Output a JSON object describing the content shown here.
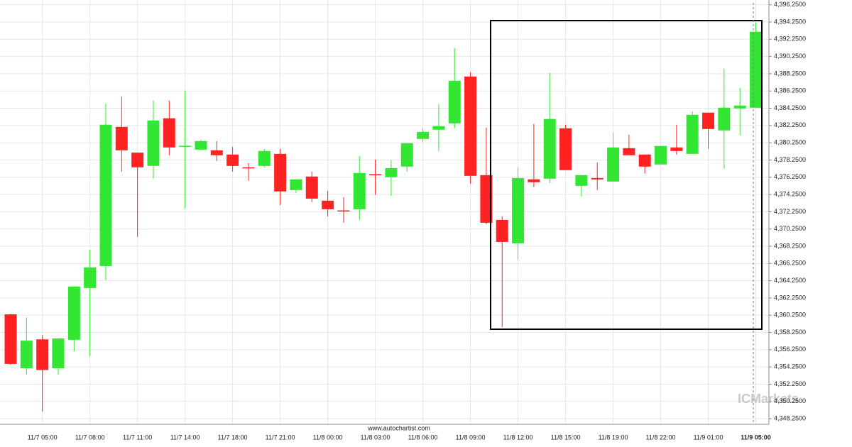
{
  "chart_data": {
    "type": "candlestick",
    "categories": [
      null,
      null,
      "11/7 05:00",
      null,
      null,
      "11/7 08:00",
      null,
      null,
      "11/7 11:00",
      null,
      null,
      "11/7 14:00",
      null,
      null,
      "11/7 18:00",
      null,
      null,
      "11/7 21:00",
      null,
      null,
      "11/8 00:00",
      null,
      null,
      "11/8 03:00",
      null,
      null,
      "11/8 06:00",
      null,
      null,
      "11/8 09:00",
      null,
      null,
      "11/8 12:00",
      null,
      null,
      "11/8 15:00",
      null,
      null,
      "11/8 19:00",
      null,
      null,
      "11/8 22:00",
      null,
      null,
      "11/9 01:00",
      null,
      null,
      "11/9 05:00"
    ],
    "open": [
      4360.35,
      4354.1,
      4357.45,
      4354.1,
      4357.4,
      4363.4,
      4365.95,
      4382.09,
      4379.1,
      4377.56,
      4383.08,
      4379.8,
      4379.45,
      4379.37,
      4378.88,
      4377.4,
      4377.56,
      4378.96,
      4374.76,
      4376.33,
      4373.53,
      4372.4,
      4372.54,
      4376.6,
      4376.25,
      4377.48,
      4380.69,
      4381.76,
      4382.5,
      4387.93,
      4376.49,
      4371.3,
      4368.59,
      4376.0,
      4376.08,
      4381.92,
      4375.25,
      4376.16,
      4375.75,
      4379.62,
      4378.88,
      4377.73,
      4379.7,
      4378.96,
      4383.74,
      4381.68,
      4384.23,
      4384.31
    ],
    "high": [
      4360.4,
      4360.0,
      4357.95,
      4357.55,
      4363.6,
      4367.85,
      4384.81,
      4385.63,
      4379.1,
      4385.14,
      4385.14,
      4386.29,
      4380.6,
      4380.44,
      4379.78,
      4377.9,
      4379.54,
      4379.54,
      4376.0,
      4376.9,
      4374.68,
      4373.94,
      4378.71,
      4378.3,
      4378.22,
      4380.2,
      4381.92,
      4384.73,
      4391.23,
      4388.43,
      4382.01,
      4371.72,
      4377.4,
      4382.42,
      4388.35,
      4382.34,
      4376.49,
      4377.97,
      4381.43,
      4381.18,
      4378.88,
      4379.87,
      4382.34,
      4383.9,
      4383.74,
      4388.84,
      4386.62,
      4394.19
    ],
    "low": [
      4354.5,
      4353.35,
      4349.07,
      4353.35,
      4356.07,
      4355.5,
      4364.3,
      4376.9,
      4369.33,
      4376.08,
      4378.8,
      4372.62,
      4379.45,
      4378.14,
      4376.9,
      4375.83,
      4377.4,
      4373.03,
      4374.43,
      4373.36,
      4371.72,
      4370.97,
      4371.3,
      4374.2,
      4374.1,
      4376.9,
      4380.36,
      4379.29,
      4381.92,
      4375.5,
      4370.8,
      4358.87,
      4366.69,
      4375.1,
      4375.58,
      4377.07,
      4374.02,
      4374.76,
      4375.75,
      4378.8,
      4376.66,
      4377.73,
      4378.88,
      4378.96,
      4379.54,
      4377.23,
      4381.1,
      4384.31
    ],
    "close": [
      4354.6,
      4357.3,
      4353.9,
      4357.55,
      4363.57,
      4365.79,
      4382.34,
      4379.37,
      4377.4,
      4382.83,
      4379.7,
      4379.9,
      4380.44,
      4378.8,
      4377.56,
      4377.3,
      4379.29,
      4374.6,
      4376.0,
      4373.77,
      4372.54,
      4372.3,
      4376.74,
      4376.5,
      4377.3,
      4380.2,
      4381.51,
      4382.17,
      4387.44,
      4376.41,
      4370.97,
      4368.75,
      4376.16,
      4375.67,
      4383.0,
      4377.07,
      4376.49,
      4376.0,
      4379.7,
      4378.8,
      4377.48,
      4379.87,
      4379.29,
      4383.49,
      4381.84,
      4384.32,
      4384.56,
      4393.12
    ],
    "up_color": "#33e633",
    "down_color": "#ff2222",
    "ylim": [
      4347.6,
      4396.8
    ],
    "yticks": [
      {
        "value": 4348.25,
        "label": "4,348.2500"
      },
      {
        "value": 4350.25,
        "label": "4,350.2500"
      },
      {
        "value": 4352.25,
        "label": "4,352.2500"
      },
      {
        "value": 4354.25,
        "label": "4,354.2500"
      },
      {
        "value": 4356.25,
        "label": "4,356.2500"
      },
      {
        "value": 4358.25,
        "label": "4,358.2500"
      },
      {
        "value": 4360.25,
        "label": "4,360.2500"
      },
      {
        "value": 4362.25,
        "label": "4,362.2500"
      },
      {
        "value": 4364.25,
        "label": "4,364.2500"
      },
      {
        "value": 4366.25,
        "label": "4,366.2500"
      },
      {
        "value": 4368.25,
        "label": "4,368.2500"
      },
      {
        "value": 4370.25,
        "label": "4,370.2500"
      },
      {
        "value": 4372.25,
        "label": "4,372.2500"
      },
      {
        "value": 4374.25,
        "label": "4,374.2500"
      },
      {
        "value": 4376.25,
        "label": "4,376.2500"
      },
      {
        "value": 4378.25,
        "label": "4,378.2500"
      },
      {
        "value": 4380.25,
        "label": "4,380.2500"
      },
      {
        "value": 4382.25,
        "label": "4,382.2500"
      },
      {
        "value": 4384.25,
        "label": "4,384.2500"
      },
      {
        "value": 4386.25,
        "label": "4,386.2500"
      },
      {
        "value": 4388.25,
        "label": "4,388.2500"
      },
      {
        "value": 4390.25,
        "label": "4,390.2500"
      },
      {
        "value": 4392.25,
        "label": "4,392.2500"
      },
      {
        "value": 4394.25,
        "label": "4,394.2500"
      },
      {
        "value": 4396.25,
        "label": "4,396.2500"
      }
    ],
    "grid": true,
    "source": "www.autochartist.com",
    "logo": "ICMarkets"
  }
}
